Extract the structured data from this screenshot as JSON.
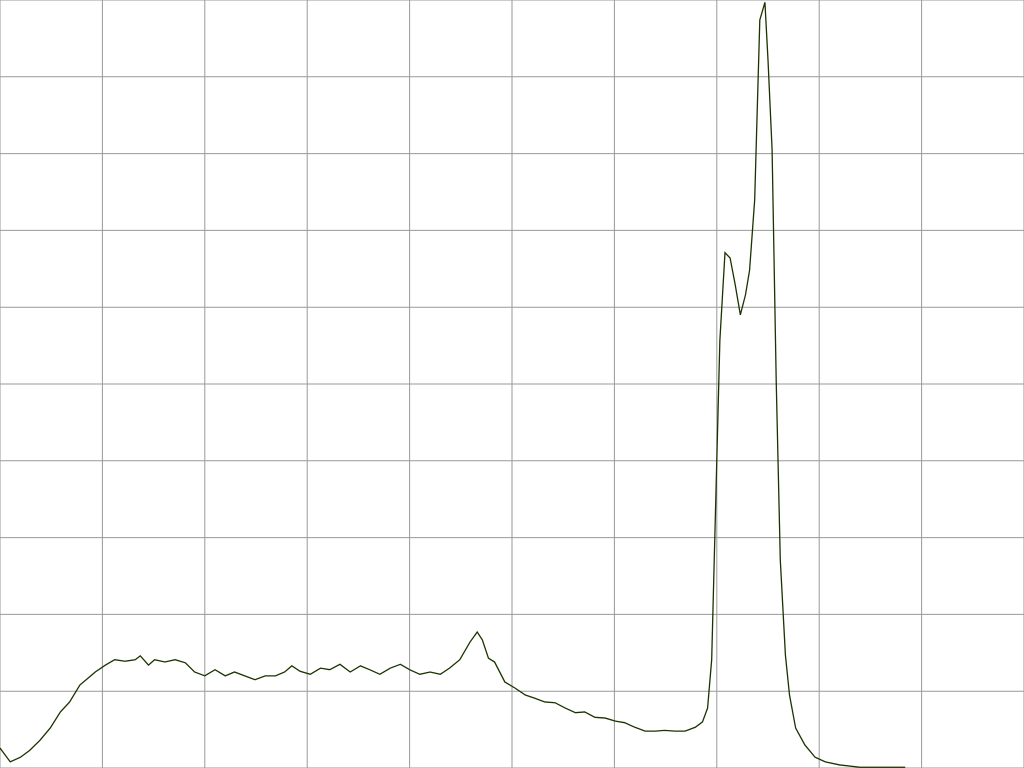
{
  "chart_data": {
    "type": "line",
    "x": [
      0,
      0.1,
      0.2,
      0.29,
      0.39,
      0.49,
      0.59,
      0.68,
      0.78,
      0.86,
      0.93,
      1.03,
      1.12,
      1.22,
      1.32,
      1.37,
      1.45,
      1.51,
      1.61,
      1.71,
      1.81,
      1.9,
      2.0,
      2.1,
      2.2,
      2.29,
      2.39,
      2.49,
      2.59,
      2.69,
      2.78,
      2.85,
      2.93,
      3.03,
      3.13,
      3.22,
      3.32,
      3.42,
      3.52,
      3.61,
      3.71,
      3.81,
      3.91,
      4.0,
      4.1,
      4.2,
      4.3,
      4.39,
      4.49,
      4.59,
      4.66,
      4.71,
      4.77,
      4.83,
      4.93,
      5.03,
      5.13,
      5.22,
      5.32,
      5.42,
      5.52,
      5.62,
      5.71,
      5.81,
      5.91,
      6.01,
      6.1,
      6.2,
      6.3,
      6.4,
      6.49,
      6.59,
      6.69,
      6.79,
      6.86,
      6.91,
      6.95,
      6.99,
      7.03,
      7.08,
      7.13,
      7.18,
      7.23,
      7.28,
      7.32,
      7.37,
      7.42,
      7.47,
      7.5,
      7.54,
      7.58,
      7.62,
      7.67,
      7.71,
      7.77,
      7.86,
      7.96,
      8.06,
      8.2,
      8.4,
      8.59,
      8.84
    ],
    "series": [
      {
        "color": "#1a3300",
        "values": [
          0.26,
          0.08,
          0.14,
          0.23,
          0.36,
          0.52,
          0.73,
          0.86,
          1.08,
          1.17,
          1.25,
          1.34,
          1.41,
          1.39,
          1.41,
          1.46,
          1.34,
          1.41,
          1.38,
          1.41,
          1.37,
          1.25,
          1.2,
          1.28,
          1.2,
          1.25,
          1.2,
          1.15,
          1.2,
          1.2,
          1.25,
          1.33,
          1.26,
          1.22,
          1.3,
          1.28,
          1.35,
          1.25,
          1.33,
          1.28,
          1.22,
          1.3,
          1.35,
          1.28,
          1.22,
          1.25,
          1.22,
          1.3,
          1.41,
          1.64,
          1.77,
          1.67,
          1.43,
          1.38,
          1.12,
          1.04,
          0.95,
          0.91,
          0.86,
          0.85,
          0.78,
          0.72,
          0.73,
          0.66,
          0.65,
          0.61,
          0.59,
          0.53,
          0.48,
          0.48,
          0.49,
          0.48,
          0.48,
          0.53,
          0.6,
          0.78,
          1.41,
          3.49,
          5.57,
          6.71,
          6.64,
          6.29,
          5.9,
          6.16,
          6.48,
          7.4,
          9.74,
          9.97,
          9.22,
          8.05,
          5.05,
          2.71,
          1.47,
          0.95,
          0.52,
          0.3,
          0.14,
          0.08,
          0.04,
          0.01,
          0.01,
          0.01
        ]
      }
    ],
    "xlim": [
      0,
      10
    ],
    "xticks": [
      0,
      1,
      2,
      3,
      4,
      5,
      6,
      7,
      8,
      9,
      10
    ],
    "ylim": [
      0,
      10
    ],
    "yticks": [
      0,
      1,
      2,
      3,
      4,
      5,
      6,
      7,
      8,
      9,
      10
    ],
    "grid": true,
    "grid_color": "#999999"
  }
}
